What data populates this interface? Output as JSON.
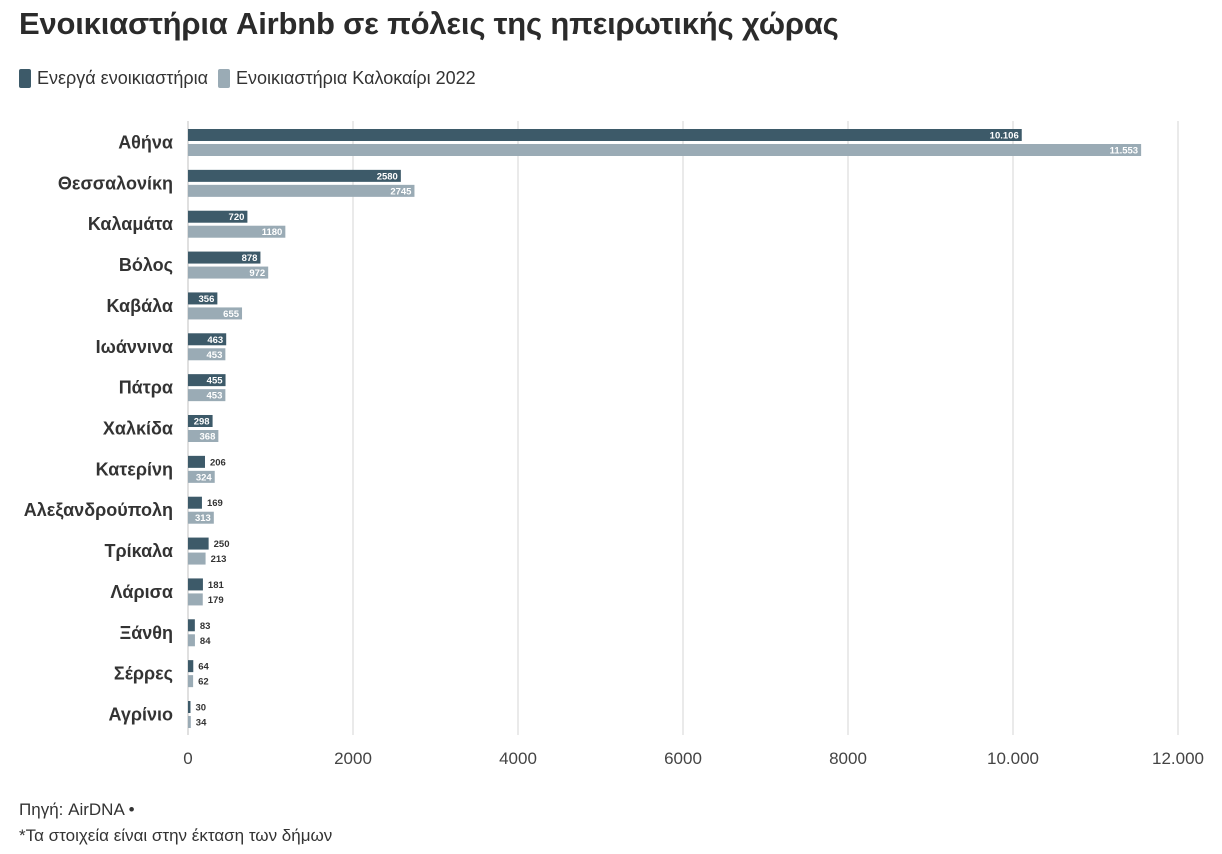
{
  "title": "Ενοικιαστήρια Airbnb σε πόλεις της ηπειρωτικής χώρας",
  "colors": {
    "active": "#3d5a69",
    "summer": "#9aabb5"
  },
  "footer": {
    "source": "Πηγή: AirDNA •",
    "note": "*Τα στοιχεία είναι στην έκταση των δήμων"
  },
  "chart_data": {
    "type": "bar",
    "orientation": "horizontal",
    "categories": [
      "Αθήνα",
      "Θεσσαλονίκη",
      "Καλαμάτα",
      "Βόλος",
      "Καβάλα",
      "Ιωάννινα",
      "Πάτρα",
      "Χαλκίδα",
      "Κατερίνη",
      "Αλεξανδρούπολη",
      "Τρίκαλα",
      "Λάρισα",
      "Ξάνθη",
      "Σέρρες",
      "Αγρίνιο"
    ],
    "series": [
      {
        "name": "Ενεργά ενοικιαστήρια",
        "values": [
          10106,
          2580,
          720,
          878,
          356,
          463,
          455,
          298,
          206,
          169,
          250,
          181,
          83,
          64,
          30
        ],
        "labels": [
          "10.106",
          "2580",
          "720",
          "878",
          "356",
          "463",
          "455",
          "298",
          "206",
          "169",
          "250",
          "181",
          "83",
          "64",
          "30"
        ]
      },
      {
        "name": "Ενοικιαστήρια Καλοκαίρι 2022",
        "values": [
          11553,
          2745,
          1180,
          972,
          655,
          453,
          453,
          368,
          324,
          313,
          213,
          179,
          84,
          62,
          34
        ],
        "labels": [
          "11.553",
          "2745",
          "1180",
          "972",
          "655",
          "453",
          "453",
          "368",
          "324",
          "313",
          "213",
          "179",
          "84",
          "62",
          "34"
        ]
      }
    ],
    "xlim": [
      0,
      12000
    ],
    "xticks": [
      0,
      2000,
      4000,
      6000,
      8000,
      10000,
      12000
    ],
    "xtick_labels": [
      "0",
      "2000",
      "4000",
      "6000",
      "8000",
      "10.000",
      "12.000"
    ],
    "grid": true,
    "legend_position": "top-left"
  }
}
